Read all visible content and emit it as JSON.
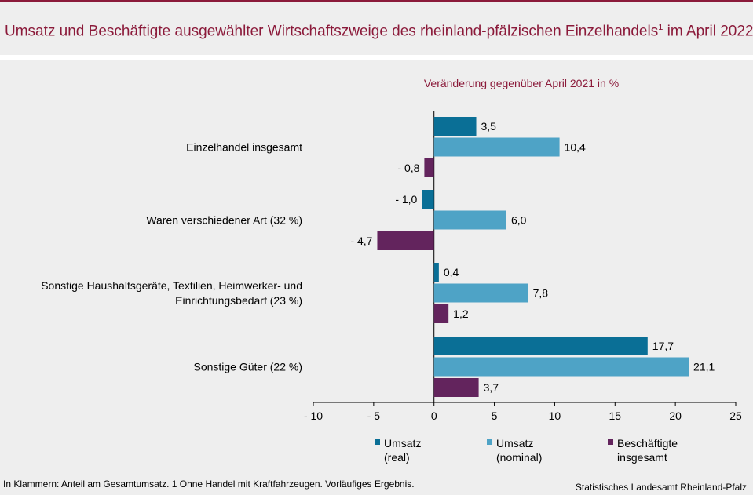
{
  "title": "Umsatz und Beschäftigte ausgewählter Wirtschaftszweige des rheinland-pfälzischen Einzelhandels",
  "title_sup": "1",
  "title_suffix": " im April 2022",
  "footnote": "In Klammern: Anteil am Gesamtumsatz. 1 Ohne Handel mit Kraftfahrzeugen. Vorläufiges Ergebnis.",
  "source": "Statistisches Landesamt Rheinland-Pfalz",
  "chart_data": {
    "type": "bar",
    "orientation": "horizontal",
    "subtitle": "Veränderung gegenüber April 2021 in %",
    "categories": [
      [
        "Einzelhandel insgesamt"
      ],
      [
        "Waren verschiedener Art (32 %)"
      ],
      [
        "Sonstige Haushaltsgeräte, Textilien, Heimwerker- und",
        "Einrichtungsbedarf (23 %)"
      ],
      [
        "Sonstige Güter (22 %)"
      ]
    ],
    "series": [
      {
        "name": "Umsatz (real)",
        "legend_lines": [
          "Umsatz",
          "(real)"
        ],
        "color": "#0a6f96",
        "values": [
          3.5,
          -1.0,
          0.4,
          17.7
        ],
        "labels": [
          "3,5",
          "- 1,0",
          "0,4",
          "17,7"
        ]
      },
      {
        "name": "Umsatz (nominal)",
        "legend_lines": [
          "Umsatz",
          "(nominal)"
        ],
        "color": "#4ea3c6",
        "values": [
          10.4,
          6.0,
          7.8,
          21.1
        ],
        "labels": [
          "10,4",
          "6,0",
          "7,8",
          "21,1"
        ]
      },
      {
        "name": "Beschäftigte insgesamt",
        "legend_lines": [
          "Beschäftigte",
          "insgesamt"
        ],
        "color": "#63245d",
        "values": [
          -0.8,
          -4.7,
          1.2,
          3.7
        ],
        "labels": [
          "- 0,8",
          "- 4,7",
          "1,2",
          "3,7"
        ]
      }
    ],
    "xlim": [
      -10,
      25
    ],
    "xticks": [
      -10,
      -5,
      0,
      5,
      10,
      15,
      20,
      25
    ],
    "xtick_labels": [
      "- 10",
      "- 5",
      "0",
      "5",
      "10",
      "15",
      "20",
      "25"
    ],
    "legend_position": "bottom",
    "subtitle_color": "#8b1a3a"
  }
}
